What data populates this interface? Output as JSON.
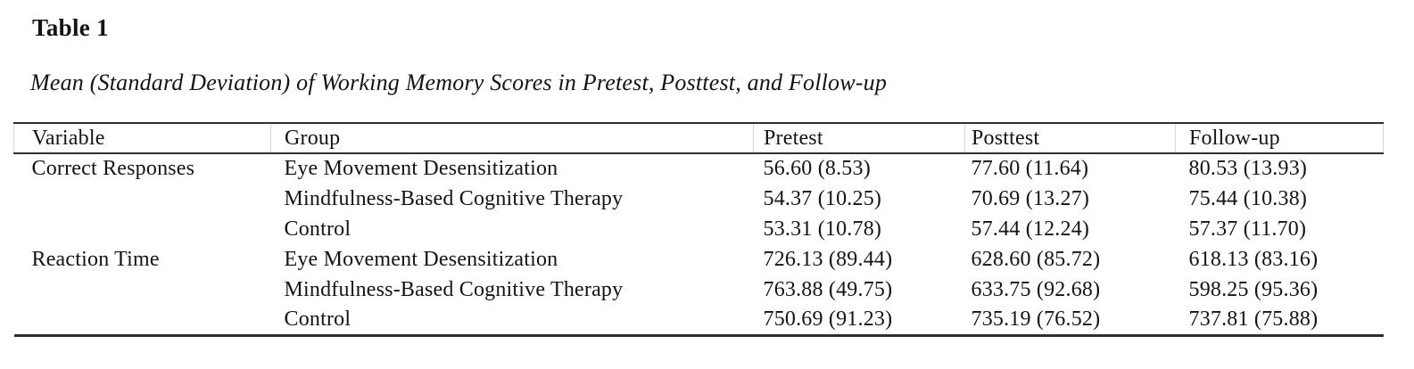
{
  "table_label": "Table 1",
  "caption": "Mean (Standard Deviation) of Working Memory Scores in Pretest, Posttest, and Follow-up",
  "columns": {
    "variable": "Variable",
    "group": "Group",
    "pretest": "Pretest",
    "posttest": "Posttest",
    "followup": "Follow-up"
  },
  "rows": [
    {
      "variable": "Correct Responses",
      "group": "Eye Movement Desensitization",
      "pretest": "56.60 (8.53)",
      "posttest": "77.60 (11.64)",
      "followup": "80.53 (13.93)"
    },
    {
      "variable": "",
      "group": "Mindfulness-Based Cognitive Therapy",
      "pretest": "54.37 (10.25)",
      "posttest": "70.69 (13.27)",
      "followup": "75.44 (10.38)"
    },
    {
      "variable": "",
      "group": "Control",
      "pretest": "53.31 (10.78)",
      "posttest": "57.44 (12.24)",
      "followup": "57.37 (11.70)"
    },
    {
      "variable": "Reaction Time",
      "group": "Eye Movement Desensitization",
      "pretest": "726.13 (89.44)",
      "posttest": "628.60 (85.72)",
      "followup": "618.13 (83.16)"
    },
    {
      "variable": "",
      "group": "Mindfulness-Based Cognitive Therapy",
      "pretest": "763.88 (49.75)",
      "posttest": "633.75 (92.68)",
      "followup": "598.25 (95.36)"
    },
    {
      "variable": "",
      "group": "Control",
      "pretest": "750.69 (91.23)",
      "posttest": "735.19 (76.52)",
      "followup": "737.81 (75.88)"
    }
  ],
  "colors": {
    "background": "#ffffff",
    "text": "#141414",
    "rule": "#2f2f2f",
    "faint_gridline": "#d6d6d6"
  }
}
